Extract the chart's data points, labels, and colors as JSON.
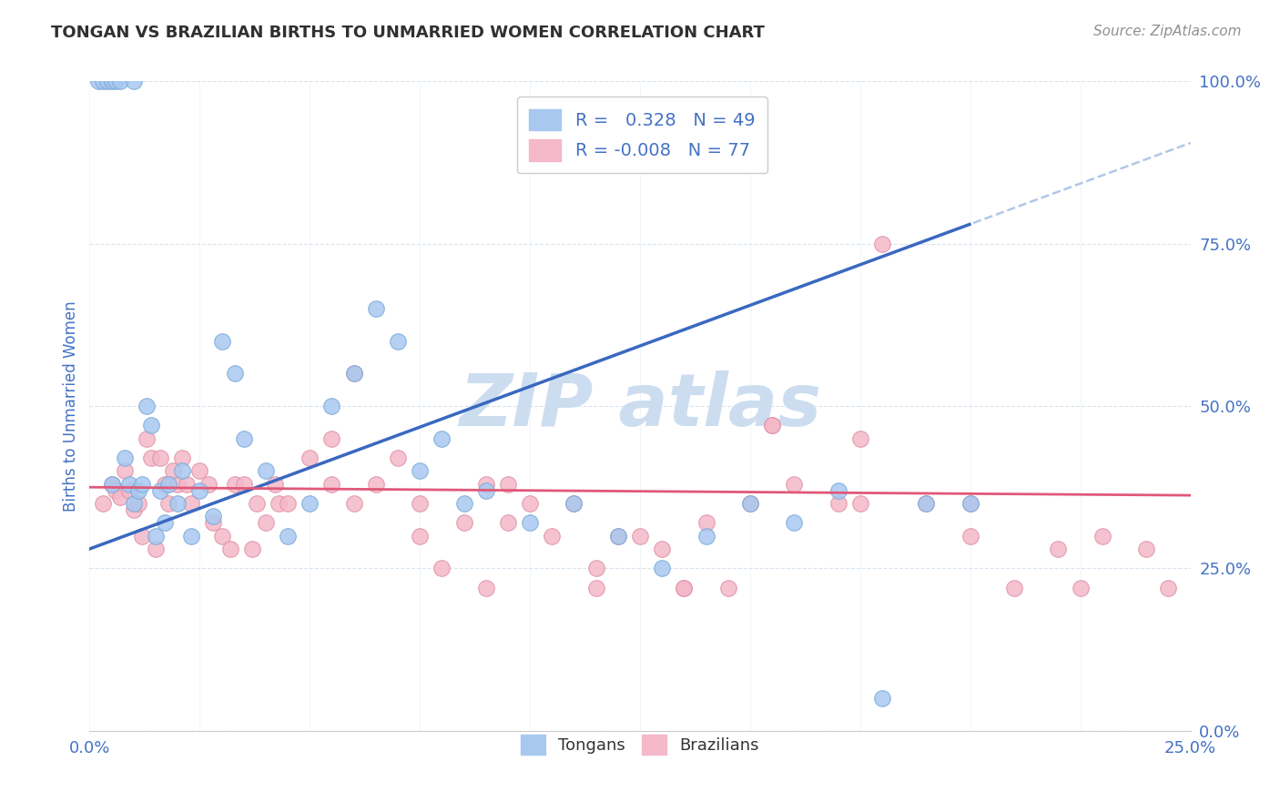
{
  "title": "TONGAN VS BRAZILIAN BIRTHS TO UNMARRIED WOMEN CORRELATION CHART",
  "source": "Source: ZipAtlas.com",
  "ylabel": "Births to Unmarried Women",
  "yticks_labels": [
    "0.0%",
    "25.0%",
    "50.0%",
    "75.0%",
    "100.0%"
  ],
  "ytick_vals": [
    0,
    25,
    50,
    75,
    100
  ],
  "xticks_labels": [
    "0.0%",
    "25.0%"
  ],
  "xtick_vals": [
    0,
    25
  ],
  "xmin": 0,
  "xmax": 25,
  "ymin": 0,
  "ymax": 100,
  "tongan_R": 0.328,
  "tongan_N": 49,
  "brazilian_R": -0.008,
  "brazilian_N": 77,
  "tongan_color": "#a8c8f0",
  "tongan_edge_color": "#7aaad8",
  "brazilian_color": "#f4b8c8",
  "brazilian_edge_color": "#e090a8",
  "tongan_line_color": "#3a68c0",
  "tongan_line_solid_end": 20,
  "brazilian_line_color": "#e05878",
  "ref_line_color": "#b0c8e8",
  "ref_line_style": "--",
  "grid_color": "#d8e4f0",
  "grid_linestyle": "--",
  "watermark_color": "#ccddf0",
  "title_color": "#303030",
  "source_color": "#909090",
  "tick_color": "#4472c4",
  "legend_labels": [
    "Tongans",
    "Brazilians"
  ],
  "tongan_x": [
    0.2,
    0.3,
    0.4,
    0.5,
    0.5,
    0.6,
    0.7,
    0.8,
    0.9,
    1.0,
    1.0,
    1.1,
    1.2,
    1.3,
    1.4,
    1.5,
    1.6,
    1.7,
    1.8,
    2.0,
    2.1,
    2.3,
    2.5,
    2.8,
    3.0,
    3.3,
    3.5,
    4.0,
    4.5,
    5.0,
    5.5,
    6.0,
    6.5,
    7.0,
    7.5,
    8.0,
    8.5,
    9.0,
    10.0,
    11.0,
    12.0,
    13.0,
    14.0,
    15.0,
    16.0,
    17.0,
    18.0,
    19.0,
    20.0
  ],
  "tongan_y": [
    100,
    100,
    100,
    100,
    38,
    100,
    100,
    42,
    38,
    100,
    35,
    37,
    38,
    50,
    47,
    30,
    37,
    32,
    38,
    35,
    40,
    30,
    37,
    33,
    60,
    55,
    45,
    40,
    30,
    35,
    50,
    55,
    65,
    60,
    40,
    45,
    35,
    37,
    32,
    35,
    30,
    25,
    30,
    35,
    32,
    37,
    5,
    35,
    35
  ],
  "brazilian_x": [
    0.3,
    0.5,
    0.6,
    0.7,
    0.8,
    0.9,
    1.0,
    1.1,
    1.2,
    1.3,
    1.4,
    1.5,
    1.6,
    1.7,
    1.8,
    1.9,
    2.0,
    2.1,
    2.2,
    2.3,
    2.5,
    2.7,
    2.8,
    3.0,
    3.2,
    3.3,
    3.5,
    3.7,
    3.8,
    4.0,
    4.2,
    4.3,
    4.5,
    5.0,
    5.5,
    6.0,
    6.5,
    7.0,
    7.5,
    8.0,
    8.5,
    9.0,
    9.5,
    10.0,
    10.5,
    11.0,
    11.5,
    12.0,
    12.5,
    13.0,
    13.5,
    14.0,
    14.5,
    15.0,
    15.5,
    16.0,
    17.0,
    17.5,
    18.0,
    19.0,
    20.0,
    21.0,
    22.0,
    22.5,
    23.0,
    24.0,
    24.5,
    5.5,
    7.5,
    9.5,
    11.5,
    13.5,
    15.5,
    17.5,
    20.0,
    6.0,
    9.0
  ],
  "brazilian_y": [
    35,
    38,
    37,
    36,
    40,
    37,
    34,
    35,
    30,
    45,
    42,
    28,
    42,
    38,
    35,
    40,
    38,
    42,
    38,
    35,
    40,
    38,
    32,
    30,
    28,
    38,
    38,
    28,
    35,
    32,
    38,
    35,
    35,
    42,
    45,
    55,
    38,
    42,
    35,
    25,
    32,
    38,
    32,
    35,
    30,
    35,
    25,
    30,
    30,
    28,
    22,
    32,
    22,
    35,
    47,
    38,
    35,
    45,
    75,
    35,
    35,
    22,
    28,
    22,
    30,
    28,
    22,
    38,
    30,
    38,
    22,
    22,
    47,
    35,
    30,
    35,
    22
  ]
}
